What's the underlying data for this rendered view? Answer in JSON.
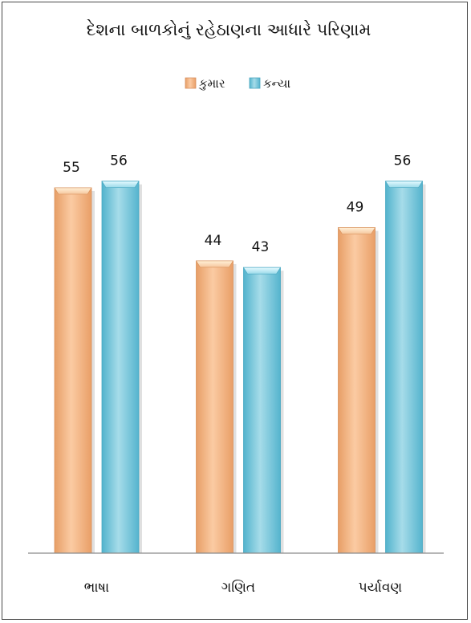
{
  "chart_data": {
    "type": "bar",
    "title": "દેશના બાળકોનું રહેઠાણના આધારે પરિણામ",
    "categories": [
      "ભાષા",
      "ગણિત",
      "પર્યાવણ"
    ],
    "series": [
      {
        "name": "કુમાર",
        "values": [
          55,
          44,
          49
        ],
        "color": "#F6B989"
      },
      {
        "name": "કન્યા",
        "values": [
          56,
          43,
          56
        ],
        "color": "#79C7DB"
      }
    ],
    "ylim": [
      0,
      62
    ],
    "legend": "top",
    "grid": false
  }
}
